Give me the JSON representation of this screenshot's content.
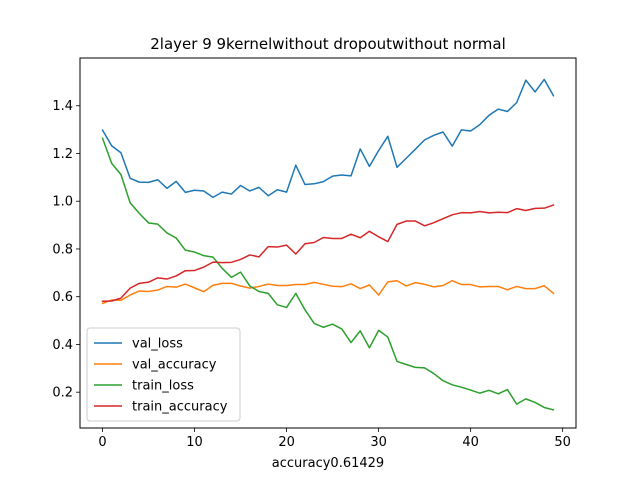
{
  "chart_data": {
    "type": "line",
    "title": "2layer  9 9kernelwithout dropoutwithout normal",
    "xlabel": "accuracy0.61429",
    "ylabel": "",
    "xlim": [
      -2.45,
      51.45
    ],
    "ylim": [
      0.05,
      1.6
    ],
    "xticks": [
      0,
      10,
      20,
      30,
      40,
      50
    ],
    "yticks": [
      0.2,
      0.4,
      0.6,
      0.8,
      1.0,
      1.2,
      1.4
    ],
    "ytick_labels": [
      "0.2",
      "0.4",
      "0.6",
      "0.8",
      "1.0",
      "1.2",
      "1.4"
    ],
    "legend": "lower-left",
    "grid": false,
    "x": [
      0,
      1,
      2,
      3,
      4,
      5,
      6,
      7,
      8,
      9,
      10,
      11,
      12,
      13,
      14,
      15,
      16,
      17,
      18,
      19,
      20,
      21,
      22,
      23,
      24,
      25,
      26,
      27,
      28,
      29,
      30,
      31,
      32,
      33,
      34,
      35,
      36,
      37,
      38,
      39,
      40,
      41,
      42,
      43,
      44,
      45,
      46,
      47,
      48,
      49
    ],
    "series": [
      {
        "name": "val_loss",
        "color": "#1f77b4",
        "values": [
          1.298,
          1.232,
          1.203,
          1.096,
          1.08,
          1.079,
          1.09,
          1.054,
          1.083,
          1.037,
          1.046,
          1.043,
          1.016,
          1.038,
          1.03,
          1.066,
          1.043,
          1.058,
          1.023,
          1.048,
          1.038,
          1.151,
          1.07,
          1.073,
          1.082,
          1.105,
          1.11,
          1.106,
          1.219,
          1.146,
          1.212,
          1.272,
          1.142,
          1.18,
          1.218,
          1.257,
          1.276,
          1.29,
          1.231,
          1.299,
          1.294,
          1.321,
          1.36,
          1.386,
          1.376,
          1.413,
          1.507,
          1.458,
          1.51,
          1.442
        ]
      },
      {
        "name": "val_accuracy",
        "color": "#ff7f0e",
        "values": [
          0.572,
          0.586,
          0.585,
          0.607,
          0.624,
          0.622,
          0.628,
          0.643,
          0.64,
          0.653,
          0.637,
          0.621,
          0.648,
          0.656,
          0.656,
          0.645,
          0.636,
          0.643,
          0.653,
          0.647,
          0.647,
          0.651,
          0.651,
          0.66,
          0.652,
          0.644,
          0.642,
          0.654,
          0.634,
          0.649,
          0.607,
          0.662,
          0.667,
          0.645,
          0.659,
          0.652,
          0.641,
          0.647,
          0.667,
          0.651,
          0.651,
          0.641,
          0.643,
          0.643,
          0.629,
          0.643,
          0.634,
          0.634,
          0.646,
          0.614
        ]
      },
      {
        "name": "train_loss",
        "color": "#2ca02c",
        "values": [
          1.264,
          1.158,
          1.112,
          0.993,
          0.949,
          0.909,
          0.904,
          0.867,
          0.846,
          0.795,
          0.787,
          0.772,
          0.766,
          0.719,
          0.681,
          0.703,
          0.645,
          0.622,
          0.614,
          0.566,
          0.555,
          0.614,
          0.545,
          0.488,
          0.472,
          0.485,
          0.465,
          0.408,
          0.457,
          0.386,
          0.459,
          0.431,
          0.329,
          0.316,
          0.304,
          0.302,
          0.278,
          0.248,
          0.231,
          0.221,
          0.209,
          0.196,
          0.208,
          0.193,
          0.211,
          0.15,
          0.172,
          0.157,
          0.136,
          0.126
        ]
      },
      {
        "name": "train_accuracy",
        "color": "#d62728",
        "values": [
          0.581,
          0.582,
          0.594,
          0.636,
          0.656,
          0.661,
          0.679,
          0.674,
          0.687,
          0.709,
          0.71,
          0.724,
          0.745,
          0.743,
          0.744,
          0.756,
          0.775,
          0.767,
          0.81,
          0.808,
          0.816,
          0.779,
          0.822,
          0.827,
          0.848,
          0.844,
          0.844,
          0.862,
          0.847,
          0.874,
          0.851,
          0.831,
          0.903,
          0.917,
          0.917,
          0.897,
          0.91,
          0.927,
          0.943,
          0.952,
          0.951,
          0.957,
          0.951,
          0.954,
          0.952,
          0.969,
          0.961,
          0.97,
          0.971,
          0.984
        ]
      }
    ]
  }
}
